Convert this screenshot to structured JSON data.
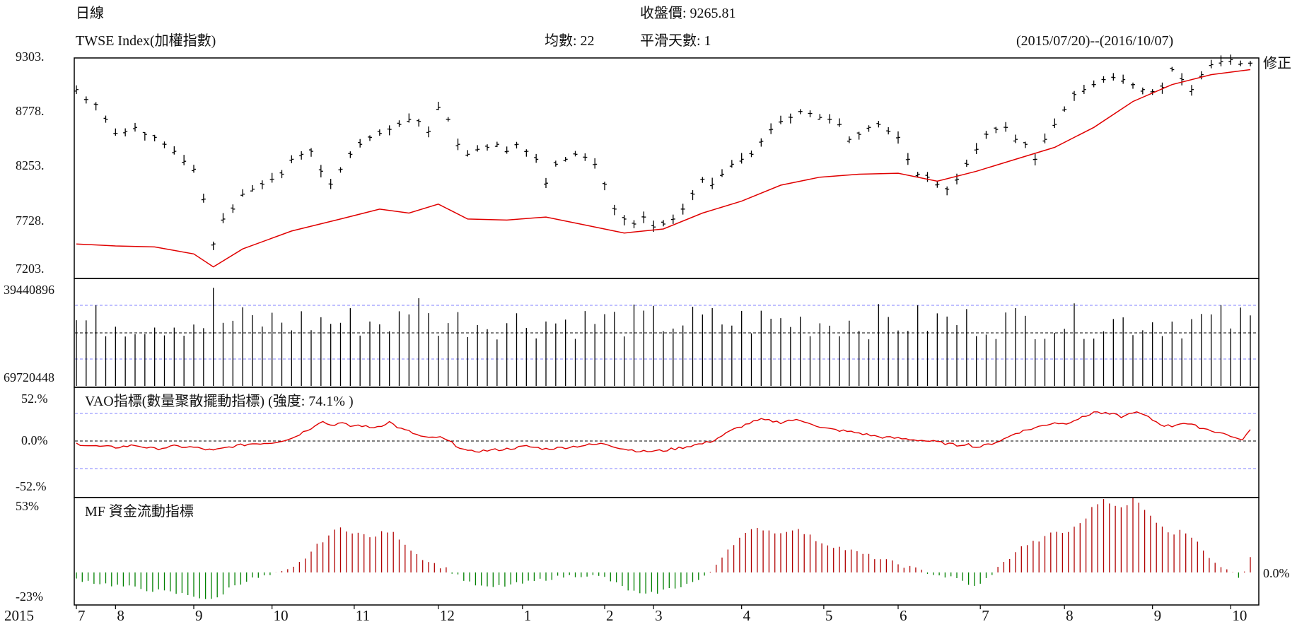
{
  "header": {
    "period": "日線",
    "close_label": "收盤價: 9265.81",
    "index_name": "TWSE Index(加權指數)",
    "ma_label": "均數: 22",
    "smooth_label": "平滑天數: 1",
    "date_range": "(2015/07/20)--(2016/10/07)",
    "corner_label": "修正"
  },
  "chart_data": [
    {
      "name": "price",
      "type": "ohlc",
      "y_ticks": [
        "9303.",
        "8778.",
        "8253.",
        "7728.",
        "7203."
      ],
      "ylim": [
        7203,
        9303
      ],
      "ma_period": 22,
      "points": [
        [
          0,
          9000
        ],
        [
          5,
          8900
        ],
        [
          10,
          8850
        ],
        [
          15,
          8700
        ],
        [
          20,
          8560
        ],
        [
          25,
          8580
        ],
        [
          30,
          8620
        ],
        [
          35,
          8550
        ],
        [
          40,
          8520
        ],
        [
          45,
          8450
        ],
        [
          50,
          8380
        ],
        [
          55,
          8280
        ],
        [
          60,
          8200
        ],
        [
          65,
          7900
        ],
        [
          70,
          7450
        ],
        [
          75,
          7700
        ],
        [
          80,
          7800
        ],
        [
          85,
          7950
        ],
        [
          90,
          8000
        ],
        [
          95,
          8050
        ],
        [
          100,
          8100
        ],
        [
          105,
          8150
        ],
        [
          110,
          8300
        ],
        [
          115,
          8350
        ],
        [
          120,
          8380
        ],
        [
          125,
          8180
        ],
        [
          130,
          8050
        ],
        [
          135,
          8200
        ],
        [
          140,
          8350
        ],
        [
          145,
          8450
        ],
        [
          150,
          8520
        ],
        [
          155,
          8560
        ],
        [
          160,
          8600
        ],
        [
          165,
          8650
        ],
        [
          170,
          8700
        ],
        [
          175,
          8680
        ],
        [
          180,
          8580
        ],
        [
          185,
          8820
        ],
        [
          190,
          8700
        ],
        [
          195,
          8450
        ],
        [
          200,
          8350
        ],
        [
          205,
          8400
        ],
        [
          210,
          8420
        ],
        [
          215,
          8450
        ],
        [
          220,
          8380
        ],
        [
          225,
          8450
        ],
        [
          230,
          8380
        ],
        [
          235,
          8300
        ],
        [
          240,
          8060
        ],
        [
          245,
          8250
        ],
        [
          250,
          8300
        ],
        [
          255,
          8350
        ],
        [
          260,
          8320
        ],
        [
          265,
          8250
        ],
        [
          270,
          8050
        ],
        [
          275,
          7800
        ],
        [
          280,
          7700
        ],
        [
          285,
          7650
        ],
        [
          290,
          7720
        ],
        [
          295,
          7620
        ],
        [
          300,
          7650
        ],
        [
          305,
          7700
        ],
        [
          310,
          7800
        ],
        [
          315,
          7950
        ],
        [
          320,
          8100
        ],
        [
          325,
          8050
        ],
        [
          330,
          8150
        ],
        [
          335,
          8250
        ],
        [
          340,
          8300
        ],
        [
          345,
          8350
        ],
        [
          350,
          8480
        ],
        [
          355,
          8600
        ],
        [
          360,
          8680
        ],
        [
          365,
          8720
        ],
        [
          370,
          8780
        ],
        [
          375,
          8760
        ],
        [
          380,
          8720
        ],
        [
          385,
          8700
        ],
        [
          390,
          8650
        ],
        [
          395,
          8500
        ],
        [
          400,
          8550
        ],
        [
          405,
          8620
        ],
        [
          410,
          8650
        ],
        [
          415,
          8580
        ],
        [
          420,
          8520
        ],
        [
          425,
          8300
        ],
        [
          430,
          8150
        ],
        [
          435,
          8120
        ],
        [
          440,
          8050
        ],
        [
          445,
          8000
        ],
        [
          450,
          8100
        ],
        [
          455,
          8250
        ],
        [
          460,
          8400
        ],
        [
          465,
          8550
        ],
        [
          470,
          8600
        ],
        [
          475,
          8620
        ],
        [
          480,
          8500
        ],
        [
          485,
          8450
        ],
        [
          490,
          8300
        ],
        [
          495,
          8500
        ],
        [
          500,
          8650
        ],
        [
          505,
          8800
        ],
        [
          510,
          8950
        ],
        [
          515,
          9000
        ],
        [
          520,
          9050
        ],
        [
          525,
          9100
        ],
        [
          530,
          9120
        ],
        [
          535,
          9100
        ],
        [
          540,
          9050
        ],
        [
          545,
          9000
        ],
        [
          550,
          8980
        ],
        [
          555,
          9020
        ],
        [
          560,
          9200
        ],
        [
          565,
          9100
        ],
        [
          570,
          9000
        ],
        [
          575,
          9150
        ],
        [
          580,
          9250
        ],
        [
          585,
          9280
        ],
        [
          590,
          9300
        ],
        [
          595,
          9260
        ],
        [
          600,
          9265
        ]
      ],
      "ma_points": [
        [
          0,
          7450
        ],
        [
          20,
          7430
        ],
        [
          40,
          7420
        ],
        [
          60,
          7350
        ],
        [
          70,
          7220
        ],
        [
          85,
          7400
        ],
        [
          110,
          7580
        ],
        [
          135,
          7700
        ],
        [
          155,
          7800
        ],
        [
          170,
          7760
        ],
        [
          185,
          7850
        ],
        [
          200,
          7700
        ],
        [
          220,
          7690
        ],
        [
          240,
          7720
        ],
        [
          260,
          7640
        ],
        [
          280,
          7560
        ],
        [
          300,
          7600
        ],
        [
          320,
          7760
        ],
        [
          340,
          7880
        ],
        [
          360,
          8040
        ],
        [
          380,
          8120
        ],
        [
          400,
          8150
        ],
        [
          420,
          8160
        ],
        [
          440,
          8080
        ],
        [
          460,
          8180
        ],
        [
          480,
          8300
        ],
        [
          500,
          8420
        ],
        [
          520,
          8620
        ],
        [
          540,
          8880
        ],
        [
          560,
          9050
        ],
        [
          580,
          9150
        ],
        [
          600,
          9200
        ]
      ]
    },
    {
      "name": "volume",
      "type": "bar",
      "y_ticks": [
        "39440896",
        "69720448"
      ]
    },
    {
      "name": "vao",
      "type": "line",
      "label": "VAO指標(數量聚散擺動指標) (強度: 74.1% )",
      "y_ticks": [
        "52.%",
        "0.0%",
        "-52.%"
      ],
      "ylim": [
        -52,
        52
      ],
      "points": [
        [
          0,
          -5
        ],
        [
          10,
          -10
        ],
        [
          20,
          -12
        ],
        [
          30,
          -8
        ],
        [
          40,
          -15
        ],
        [
          50,
          -10
        ],
        [
          60,
          -12
        ],
        [
          70,
          -18
        ],
        [
          80,
          -10
        ],
        [
          90,
          -5
        ],
        [
          100,
          -3
        ],
        [
          110,
          5
        ],
        [
          115,
          15
        ],
        [
          120,
          25
        ],
        [
          125,
          38
        ],
        [
          130,
          30
        ],
        [
          135,
          34
        ],
        [
          140,
          28
        ],
        [
          145,
          30
        ],
        [
          150,
          25
        ],
        [
          155,
          28
        ],
        [
          160,
          36
        ],
        [
          165,
          24
        ],
        [
          170,
          18
        ],
        [
          175,
          10
        ],
        [
          180,
          5
        ],
        [
          185,
          8
        ],
        [
          190,
          0
        ],
        [
          195,
          -10
        ],
        [
          200,
          -20
        ],
        [
          210,
          -18
        ],
        [
          220,
          -15
        ],
        [
          230,
          -10
        ],
        [
          240,
          -15
        ],
        [
          250,
          -12
        ],
        [
          260,
          -8
        ],
        [
          270,
          -5
        ],
        [
          280,
          -15
        ],
        [
          290,
          -20
        ],
        [
          300,
          -18
        ],
        [
          310,
          -12
        ],
        [
          315,
          -8
        ],
        [
          320,
          -5
        ],
        [
          325,
          0
        ],
        [
          330,
          10
        ],
        [
          335,
          20
        ],
        [
          340,
          28
        ],
        [
          345,
          35
        ],
        [
          350,
          40
        ],
        [
          355,
          38
        ],
        [
          360,
          35
        ],
        [
          365,
          40
        ],
        [
          370,
          38
        ],
        [
          375,
          35
        ],
        [
          380,
          25
        ],
        [
          390,
          20
        ],
        [
          400,
          15
        ],
        [
          410,
          8
        ],
        [
          420,
          5
        ],
        [
          430,
          2
        ],
        [
          440,
          -2
        ],
        [
          445,
          -5
        ],
        [
          450,
          -8
        ],
        [
          455,
          -5
        ],
        [
          460,
          -12
        ],
        [
          465,
          -8
        ],
        [
          470,
          -2
        ],
        [
          475,
          5
        ],
        [
          480,
          15
        ],
        [
          485,
          20
        ],
        [
          490,
          25
        ],
        [
          495,
          30
        ],
        [
          500,
          35
        ],
        [
          505,
          32
        ],
        [
          510,
          40
        ],
        [
          515,
          45
        ],
        [
          520,
          55
        ],
        [
          525,
          52
        ],
        [
          530,
          50
        ],
        [
          535,
          45
        ],
        [
          540,
          55
        ],
        [
          545,
          50
        ],
        [
          550,
          40
        ],
        [
          555,
          30
        ],
        [
          560,
          28
        ],
        [
          565,
          35
        ],
        [
          570,
          30
        ],
        [
          575,
          25
        ],
        [
          580,
          20
        ],
        [
          585,
          15
        ],
        [
          590,
          10
        ],
        [
          595,
          0
        ],
        [
          600,
          20
        ]
      ]
    },
    {
      "name": "mf",
      "type": "bar",
      "label": "MF 資金流動指標",
      "y_ticks": [
        "53%",
        "-23%"
      ],
      "zero_label": "0.0%",
      "ylim": [
        -23,
        53
      ],
      "points": [
        [
          0,
          -5
        ],
        [
          10,
          -8
        ],
        [
          20,
          -10
        ],
        [
          30,
          -12
        ],
        [
          40,
          -14
        ],
        [
          50,
          -16
        ],
        [
          60,
          -18
        ],
        [
          70,
          -22
        ],
        [
          80,
          -10
        ],
        [
          90,
          -5
        ],
        [
          100,
          -2
        ],
        [
          110,
          2
        ],
        [
          115,
          8
        ],
        [
          120,
          15
        ],
        [
          125,
          22
        ],
        [
          130,
          28
        ],
        [
          135,
          32
        ],
        [
          140,
          30
        ],
        [
          145,
          28
        ],
        [
          150,
          25
        ],
        [
          155,
          28
        ],
        [
          160,
          30
        ],
        [
          165,
          25
        ],
        [
          170,
          18
        ],
        [
          175,
          12
        ],
        [
          180,
          8
        ],
        [
          185,
          5
        ],
        [
          190,
          2
        ],
        [
          195,
          -2
        ],
        [
          200,
          -8
        ],
        [
          210,
          -12
        ],
        [
          220,
          -10
        ],
        [
          230,
          -8
        ],
        [
          240,
          -5
        ],
        [
          250,
          -3
        ],
        [
          260,
          -2
        ],
        [
          270,
          -4
        ],
        [
          280,
          -12
        ],
        [
          290,
          -18
        ],
        [
          300,
          -14
        ],
        [
          310,
          -10
        ],
        [
          320,
          -5
        ],
        [
          325,
          2
        ],
        [
          330,
          12
        ],
        [
          335,
          20
        ],
        [
          340,
          26
        ],
        [
          345,
          30
        ],
        [
          350,
          32
        ],
        [
          355,
          30
        ],
        [
          360,
          28
        ],
        [
          365,
          32
        ],
        [
          370,
          30
        ],
        [
          375,
          26
        ],
        [
          380,
          22
        ],
        [
          390,
          18
        ],
        [
          400,
          14
        ],
        [
          410,
          10
        ],
        [
          420,
          6
        ],
        [
          430,
          2
        ],
        [
          440,
          -2
        ],
        [
          450,
          -5
        ],
        [
          455,
          -8
        ],
        [
          460,
          -12
        ],
        [
          465,
          -5
        ],
        [
          470,
          2
        ],
        [
          475,
          8
        ],
        [
          480,
          15
        ],
        [
          485,
          20
        ],
        [
          490,
          22
        ],
        [
          495,
          25
        ],
        [
          500,
          30
        ],
        [
          505,
          28
        ],
        [
          510,
          32
        ],
        [
          515,
          38
        ],
        [
          520,
          48
        ],
        [
          525,
          53
        ],
        [
          530,
          50
        ],
        [
          535,
          45
        ],
        [
          540,
          53
        ],
        [
          545,
          48
        ],
        [
          550,
          40
        ],
        [
          555,
          32
        ],
        [
          560,
          28
        ],
        [
          565,
          32
        ],
        [
          570,
          25
        ],
        [
          575,
          18
        ],
        [
          580,
          10
        ],
        [
          585,
          5
        ],
        [
          590,
          2
        ],
        [
          595,
          -4
        ],
        [
          600,
          10
        ]
      ]
    },
    {
      "name": "time_axis",
      "type": "axis",
      "year_label": "2015",
      "months": [
        {
          "label": "7",
          "x": 0
        },
        {
          "label": "8",
          "x": 20
        },
        {
          "label": "9",
          "x": 60
        },
        {
          "label": "10",
          "x": 100
        },
        {
          "label": "11",
          "x": 142
        },
        {
          "label": "12",
          "x": 185
        },
        {
          "label": "1",
          "x": 228
        },
        {
          "label": "2",
          "x": 270
        },
        {
          "label": "3",
          "x": 295
        },
        {
          "label": "4",
          "x": 340
        },
        {
          "label": "5",
          "x": 382
        },
        {
          "label": "6",
          "x": 420
        },
        {
          "label": "7",
          "x": 462
        },
        {
          "label": "8",
          "x": 505
        },
        {
          "label": "9",
          "x": 550
        },
        {
          "label": "10",
          "x": 590
        }
      ]
    }
  ],
  "colors": {
    "ma_line": "#e00000",
    "vao_line": "#e00000",
    "mf_positive": "#b00000",
    "mf_negative": "#008000",
    "price": "#000000",
    "volume": "#000000",
    "guide": "#8080ff"
  }
}
